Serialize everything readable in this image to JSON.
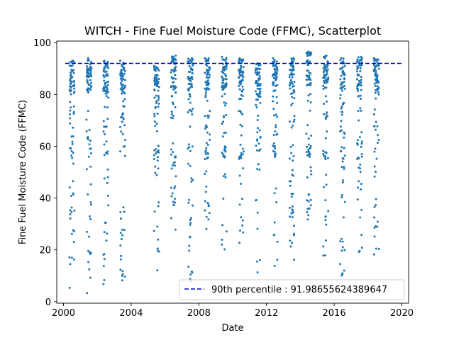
{
  "chart_data": {
    "type": "scatter",
    "title": "WITCH - Fine Fuel Moisture Code (FFMC), Scatterplot",
    "xlabel": "Date",
    "ylabel": "Fine Fuel Moisture Code (FFMC)",
    "xlim": [
      1999.6,
      2020.4
    ],
    "ylim": [
      -0.6,
      100.6
    ],
    "xticks": [
      2000,
      2004,
      2008,
      2012,
      2016,
      2020
    ],
    "xtick_labels": [
      "2000",
      "2004",
      "2008",
      "2012",
      "2016",
      "2020"
    ],
    "yticks": [
      0,
      20,
      40,
      60,
      80,
      100
    ],
    "ytick_labels": [
      "0",
      "20",
      "40",
      "60",
      "80",
      "100"
    ],
    "point_color": "#1f77b4",
    "reference_line": {
      "value": 91.98655624389647,
      "color": "#0000cc",
      "style": "dashed",
      "label": "90th percentile : 91.98655624389647"
    },
    "legend_position": "lower-right",
    "seasons": [
      {
        "year": 2000,
        "start": 2000.35,
        "end": 2000.65,
        "low": 5.3,
        "high": 93
      },
      {
        "year": 2001,
        "start": 2001.35,
        "end": 2001.65,
        "low": 3.3,
        "high": 94
      },
      {
        "year": 2002,
        "start": 2002.35,
        "end": 2002.65,
        "low": 6.8,
        "high": 93
      },
      {
        "year": 2003,
        "start": 2003.35,
        "end": 2003.65,
        "low": 8.2,
        "high": 93
      },
      {
        "year": 2005,
        "start": 2005.35,
        "end": 2005.65,
        "low": 12.1,
        "high": 91
      },
      {
        "year": 2006,
        "start": 2006.35,
        "end": 2006.65,
        "low": 27.8,
        "high": 95
      },
      {
        "year": 2007,
        "start": 2007.35,
        "end": 2007.65,
        "low": 7.8,
        "high": 94
      },
      {
        "year": 2008,
        "start": 2008.35,
        "end": 2008.65,
        "low": 28.0,
        "high": 94
      },
      {
        "year": 2009,
        "start": 2009.35,
        "end": 2009.65,
        "low": 20.2,
        "high": 94.5
      },
      {
        "year": 2010,
        "start": 2010.35,
        "end": 2010.65,
        "low": 22.7,
        "high": 94
      },
      {
        "year": 2011,
        "start": 2011.35,
        "end": 2011.65,
        "low": 11.3,
        "high": 92
      },
      {
        "year": 2012,
        "start": 2012.35,
        "end": 2012.65,
        "low": 13.8,
        "high": 94
      },
      {
        "year": 2013,
        "start": 2013.35,
        "end": 2013.65,
        "low": 16.2,
        "high": 94
      },
      {
        "year": 2014,
        "start": 2014.35,
        "end": 2014.65,
        "low": 31.7,
        "high": 96.5
      },
      {
        "year": 2015,
        "start": 2015.35,
        "end": 2015.65,
        "low": 17.8,
        "high": 95
      },
      {
        "year": 2016,
        "start": 2016.35,
        "end": 2016.65,
        "low": 10.1,
        "high": 94
      },
      {
        "year": 2017,
        "start": 2017.35,
        "end": 2017.65,
        "low": 19.2,
        "high": 94.5
      },
      {
        "year": 2018,
        "start": 2018.35,
        "end": 2018.65,
        "low": 18.2,
        "high": 94
      }
    ],
    "points_per_season": 85
  }
}
